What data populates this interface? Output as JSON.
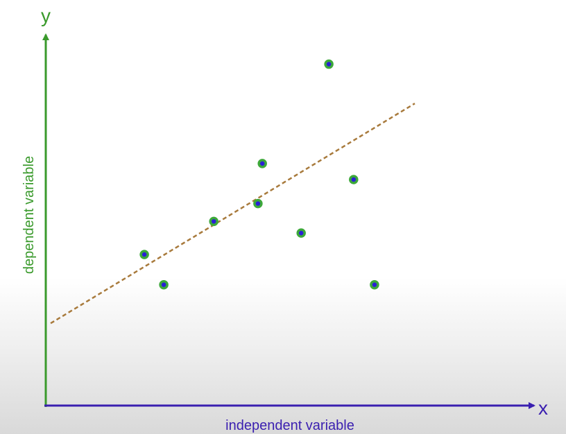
{
  "chart_data": {
    "type": "scatter",
    "title": "",
    "xlabel": "independent variable",
    "ylabel": "dependent variable",
    "x_axis_letter": "x",
    "y_axis_letter": "y",
    "grid": false,
    "legend": "none",
    "xlim": [
      0,
      10
    ],
    "ylim": [
      0,
      10
    ],
    "points": [
      {
        "x": 2.03,
        "y": 4.15
      },
      {
        "x": 2.43,
        "y": 3.32
      },
      {
        "x": 3.46,
        "y": 5.06
      },
      {
        "x": 4.37,
        "y": 5.55
      },
      {
        "x": 4.46,
        "y": 6.65
      },
      {
        "x": 5.26,
        "y": 4.74
      },
      {
        "x": 5.83,
        "y": 9.38
      },
      {
        "x": 6.34,
        "y": 6.21
      },
      {
        "x": 6.77,
        "y": 3.32
      }
    ],
    "trendline": {
      "style": "dashed",
      "x": [
        0.1,
        7.6
      ],
      "y": [
        2.26,
        8.3
      ]
    },
    "colors": {
      "x_axis": "#3a1fb0",
      "y_axis": "#3a9a2c",
      "point_fill": "#2a1fd6",
      "point_ring": "#3da83a",
      "trendline": "#a87a3c"
    }
  }
}
